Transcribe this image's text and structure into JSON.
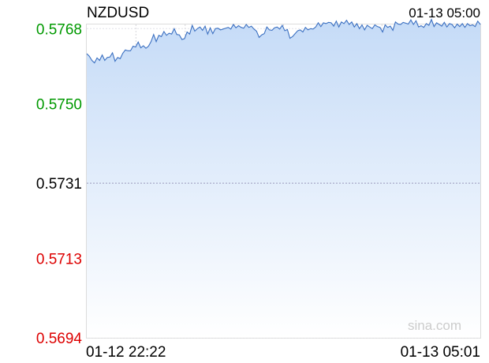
{
  "chart_data": {
    "type": "area",
    "title": "NZDUSD",
    "timestamp": "01-13 05:00",
    "x_start_label": "01-12 22:22",
    "x_end_label": "01-13 05:01",
    "watermark": "sina.com",
    "ylim": [
      0.5694,
      0.5769
    ],
    "reference_value": 0.5731,
    "y_ticks": [
      {
        "label": "0.5768",
        "value": 0.5768,
        "color": "#009900"
      },
      {
        "label": "0.5750",
        "value": 0.575,
        "color": "#009900"
      },
      {
        "label": "0.5731",
        "value": 0.5731,
        "color": "#000000"
      },
      {
        "label": "0.5713",
        "value": 0.5713,
        "color": "#dd0000"
      },
      {
        "label": "0.5694",
        "value": 0.5694,
        "color": "#dd0000"
      }
    ],
    "series": [
      {
        "values": [
          0.5762,
          0.57614,
          0.57604,
          0.57598,
          0.5761,
          0.57604,
          0.57617,
          0.57604,
          0.57611,
          0.57612,
          0.57622,
          0.57602,
          0.57611,
          0.57608,
          0.57621,
          0.57629,
          0.57627,
          0.57627,
          0.57638,
          0.57636,
          0.57648,
          0.57634,
          0.57639,
          0.57633,
          0.57638,
          0.57649,
          0.57666,
          0.57649,
          0.57664,
          0.57661,
          0.57673,
          0.57664,
          0.57669,
          0.57667,
          0.5768,
          0.57666,
          0.57665,
          0.57654,
          0.57656,
          0.57672,
          0.57667,
          0.57688,
          0.57674,
          0.5768,
          0.57684,
          0.57676,
          0.57686,
          0.57667,
          0.57682,
          0.57668,
          0.5768,
          0.57681,
          0.57677,
          0.57679,
          0.57681,
          0.57683,
          0.57679,
          0.5769,
          0.57682,
          0.57687,
          0.57683,
          0.57681,
          0.5769,
          0.57683,
          0.57686,
          0.57679,
          0.57674,
          0.57659,
          0.57665,
          0.57668,
          0.57684,
          0.57677,
          0.57676,
          0.57682,
          0.57684,
          0.57679,
          0.57688,
          0.57675,
          0.57678,
          0.57657,
          0.57661,
          0.57668,
          0.57675,
          0.57677,
          0.57672,
          0.57683,
          0.57677,
          0.5768,
          0.57679,
          0.57684,
          0.57694,
          0.57685,
          0.57694,
          0.57692,
          0.57695,
          0.57694,
          0.57686,
          0.57698,
          0.57684,
          0.57696,
          0.57692,
          0.577,
          0.5769,
          0.57696,
          0.57684,
          0.57692,
          0.5768,
          0.57689,
          0.57677,
          0.57688,
          0.57684,
          0.5768,
          0.57689,
          0.57685,
          0.57683,
          0.57672,
          0.57689,
          0.57683,
          0.57686,
          0.57676,
          0.57696,
          0.57691,
          0.5769,
          0.57695,
          0.57693,
          0.57691,
          0.57701,
          0.5769,
          0.57699,
          0.57684,
          0.57687,
          0.57683,
          0.57692,
          0.57688,
          0.57702,
          0.57685,
          0.57694,
          0.5769,
          0.57686,
          0.57695,
          0.57684,
          0.57692,
          0.5769,
          0.57682,
          0.57691,
          0.57685,
          0.57692,
          0.57683,
          0.57692,
          0.57687,
          0.57689,
          0.57685,
          0.57698,
          0.5769
        ]
      }
    ],
    "grid": true
  }
}
